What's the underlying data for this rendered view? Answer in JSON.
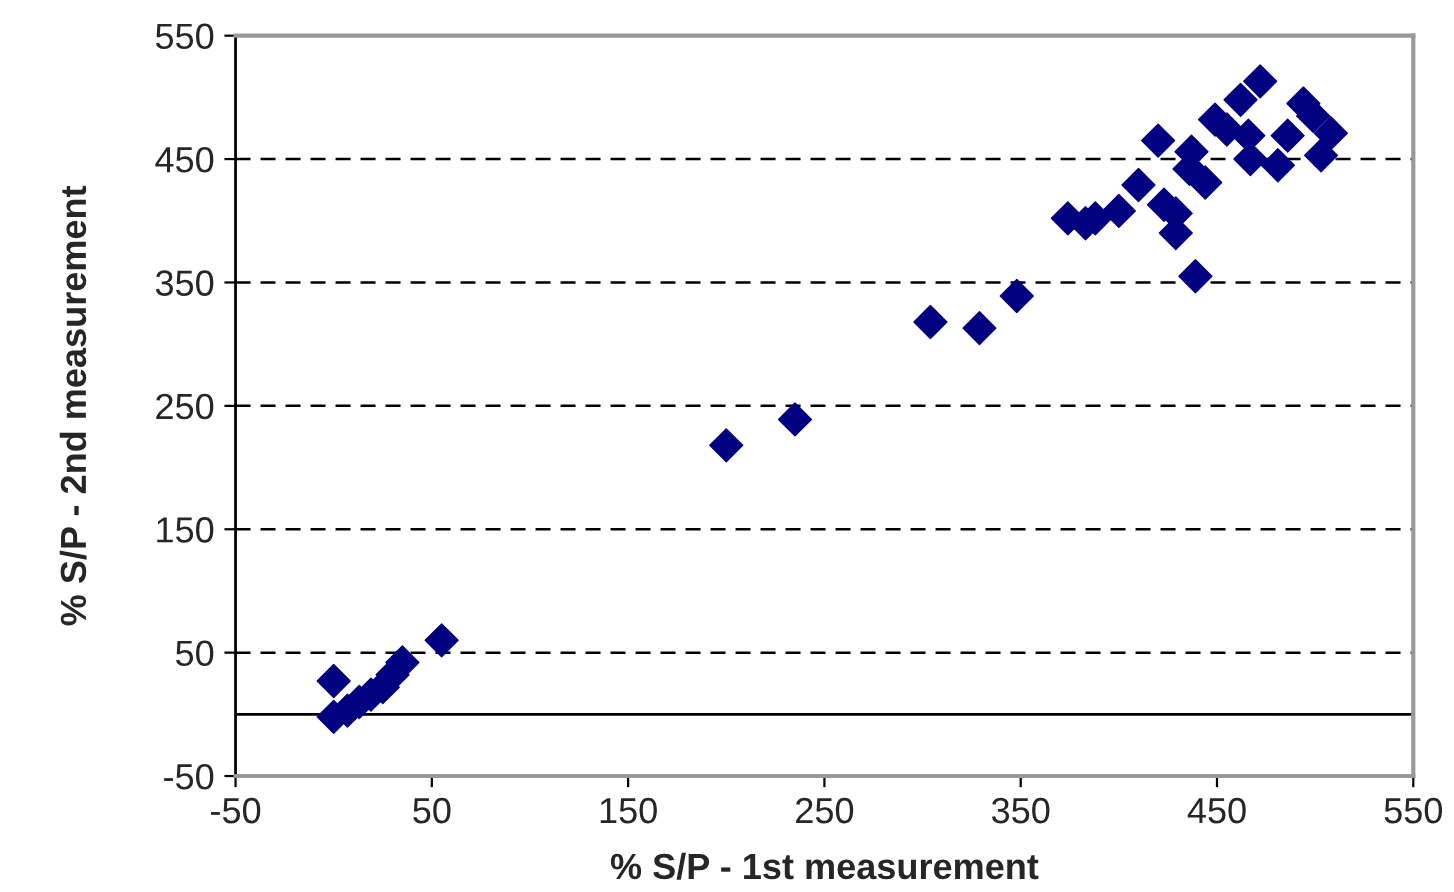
{
  "chart_data": {
    "type": "scatter",
    "xlabel": "% S/P - 1st measurement",
    "ylabel": "% S/P - 2nd measurement",
    "xlim": [
      -50,
      550
    ],
    "ylim": [
      -50,
      550
    ],
    "xticks": [
      -50,
      50,
      150,
      250,
      350,
      450,
      550
    ],
    "yticks": [
      -50,
      50,
      150,
      250,
      350,
      450,
      550
    ],
    "grid": "y",
    "marker": "diamond",
    "ref_lines": [
      {
        "axis": "y",
        "value": 0,
        "color": "#000000",
        "line_style": "solid"
      }
    ],
    "series": [
      {
        "color": "#000080",
        "x": [
          0,
          0,
          7,
          13,
          19,
          25,
          30,
          35,
          55,
          200,
          235,
          304,
          329,
          348,
          374,
          383,
          388,
          400,
          410,
          420,
          423,
          429,
          429,
          439,
          437,
          436,
          444,
          449,
          455,
          462,
          472,
          466,
          467,
          481,
          486,
          494,
          499,
          508,
          503
        ],
        "values": [
          27,
          -2,
          3,
          10,
          16,
          22,
          32,
          42,
          60,
          218,
          239,
          318,
          313,
          339,
          402,
          398,
          402,
          408,
          429,
          465,
          413,
          406,
          390,
          355,
          456,
          442,
          431,
          482,
          474,
          498,
          513,
          469,
          450,
          445,
          469,
          495,
          485,
          471,
          453
        ]
      }
    ]
  }
}
